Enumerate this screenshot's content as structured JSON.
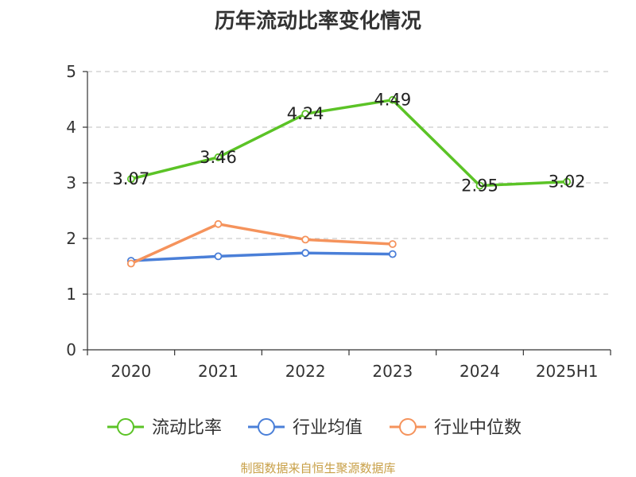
{
  "title": "历年流动比率变化情况",
  "source": "制图数据来自恒生聚源数据库",
  "colors": {
    "current_ratio": "#5bc326",
    "industry_avg": "#4a7fd8",
    "industry_median": "#f5935c",
    "grid": "#cccccc",
    "axis": "#333333"
  },
  "chart_data": {
    "type": "line",
    "title": "历年流动比率变化情况",
    "categories": [
      "2020",
      "2021",
      "2022",
      "2023",
      "2024",
      "2025H1"
    ],
    "ylim": [
      0,
      5
    ],
    "yticks": [
      0,
      1,
      2,
      3,
      4,
      5
    ],
    "grid": true,
    "legend_position": "bottom",
    "series": [
      {
        "name": "流动比率",
        "color": "#5bc326",
        "values": [
          3.07,
          3.46,
          4.24,
          4.49,
          2.95,
          3.02
        ],
        "labels": [
          "3.07",
          "3.46",
          "4.24",
          "4.49",
          "2.95",
          "3.02"
        ],
        "show_labels": true
      },
      {
        "name": "行业均值",
        "color": "#4a7fd8",
        "values": [
          1.6,
          1.68,
          1.74,
          1.72,
          null,
          null
        ],
        "show_labels": false
      },
      {
        "name": "行业中位数",
        "color": "#f5935c",
        "values": [
          1.55,
          2.26,
          1.98,
          1.9,
          null,
          null
        ],
        "show_labels": false
      }
    ]
  }
}
